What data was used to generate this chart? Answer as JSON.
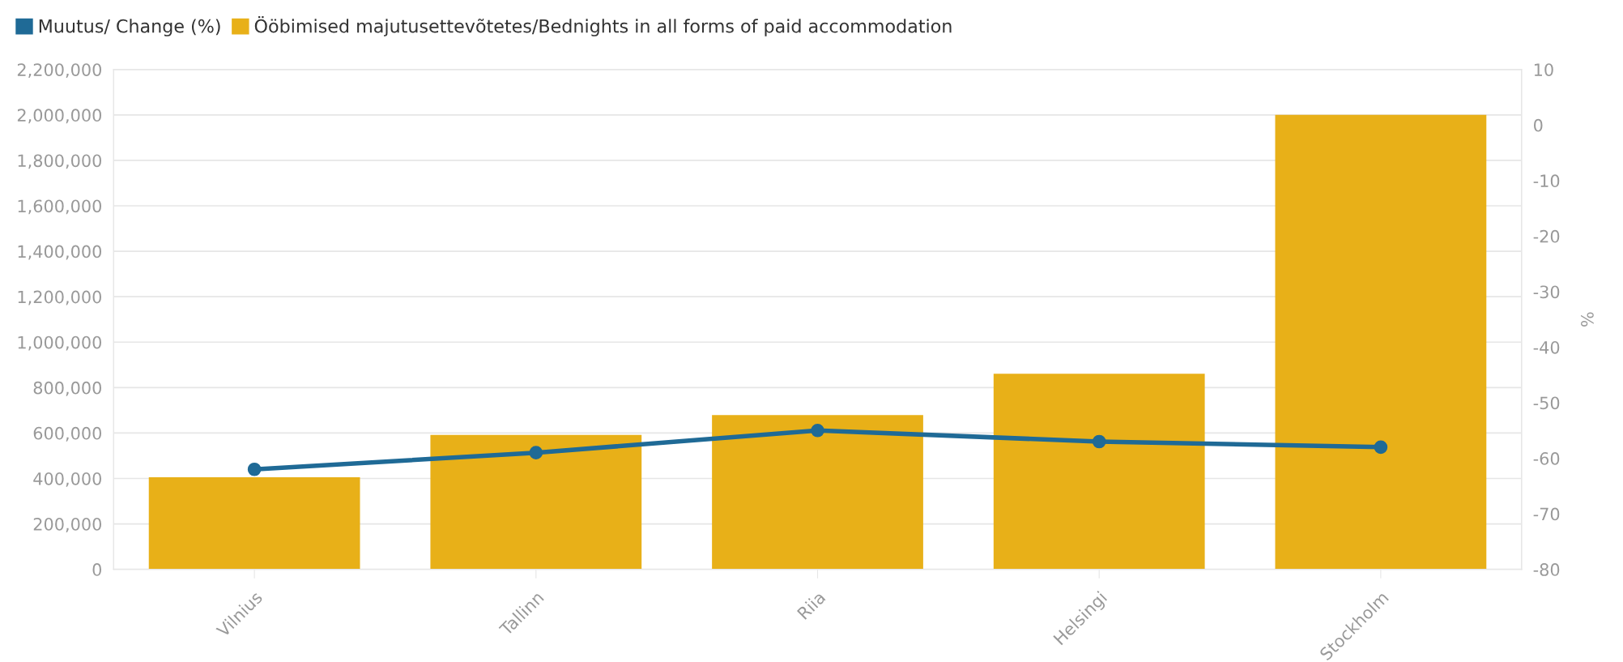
{
  "chart_data": {
    "type": "bar",
    "categories": [
      "Vilnius",
      "Tallinn",
      "Riia",
      "Helsingi",
      "Stockholm"
    ],
    "series": [
      {
        "name": "Muutus/ Change (%)",
        "type": "line",
        "axis": "y2",
        "color": "#1f6a96",
        "values": [
          -62,
          -59,
          -55,
          -57,
          -58
        ]
      },
      {
        "name": "Ööbimised majutusettevõtetes/Bednights in all forms of paid accommodation",
        "color": "#e8b018",
        "values": [
          405000,
          592000,
          679000,
          861000,
          2000000
        ]
      }
    ],
    "ylim": [
      0,
      2200000
    ],
    "yticks": [
      {
        "value": 0,
        "label": "0"
      },
      {
        "value": 200000,
        "label": "200,000"
      },
      {
        "value": 400000,
        "label": "400,000"
      },
      {
        "value": 600000,
        "label": "600,000"
      },
      {
        "value": 800000,
        "label": "800,000"
      },
      {
        "value": 1000000,
        "label": "1,000,000"
      },
      {
        "value": 1200000,
        "label": "1,200,000"
      },
      {
        "value": 1400000,
        "label": "1,400,000"
      },
      {
        "value": 1600000,
        "label": "1,600,000"
      },
      {
        "value": 1800000,
        "label": "1,800,000"
      },
      {
        "value": 2000000,
        "label": "2,000,000"
      },
      {
        "value": 2200000,
        "label": "2,200,000"
      }
    ],
    "y2lim": [
      -80,
      10
    ],
    "y2ticks": [
      -80,
      -70,
      -60,
      -50,
      -40,
      -30,
      -20,
      -10,
      0,
      10
    ],
    "y2label": "%",
    "grid": "y",
    "legend": "top left",
    "marker": "circle"
  }
}
